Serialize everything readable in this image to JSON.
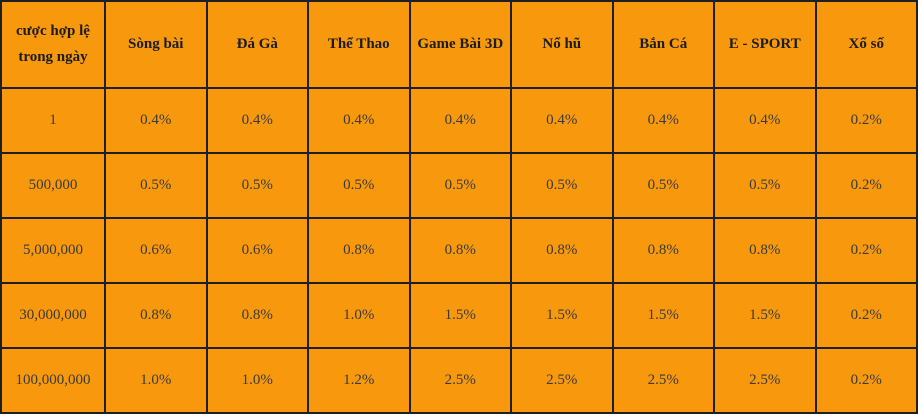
{
  "table": {
    "corner_label": "cược hợp lệ trong ngày",
    "columns": [
      "Sòng bài",
      "Đá Gà",
      "Thể Thao",
      "Game Bài 3D",
      "Nổ hũ",
      "Bắn Cá",
      "E - SPORT",
      "Xổ số"
    ],
    "rows": [
      {
        "tier": "1",
        "values": [
          "0.4%",
          "0.4%",
          "0.4%",
          "0.4%",
          "0.4%",
          "0.4%",
          "0.4%",
          "0.2%"
        ]
      },
      {
        "tier": "500,000",
        "values": [
          "0.5%",
          "0.5%",
          "0.5%",
          "0.5%",
          "0.5%",
          "0.5%",
          "0.5%",
          "0.2%"
        ]
      },
      {
        "tier": "5,000,000",
        "values": [
          "0.6%",
          "0.6%",
          "0.8%",
          "0.8%",
          "0.8%",
          "0.8%",
          "0.8%",
          "0.2%"
        ]
      },
      {
        "tier": "30,000,000",
        "values": [
          "0.8%",
          "0.8%",
          "1.0%",
          "1.5%",
          "1.5%",
          "1.5%",
          "1.5%",
          "0.2%"
        ]
      },
      {
        "tier": "100,000,000",
        "values": [
          "1.0%",
          "1.0%",
          "1.2%",
          "2.5%",
          "2.5%",
          "2.5%",
          "2.5%",
          "0.2%"
        ]
      }
    ],
    "colors": {
      "cell_background": "#F8990D",
      "border": "#1F1F1F",
      "header_text": "#1C1C1C",
      "body_text": "#3A3A3A"
    }
  }
}
